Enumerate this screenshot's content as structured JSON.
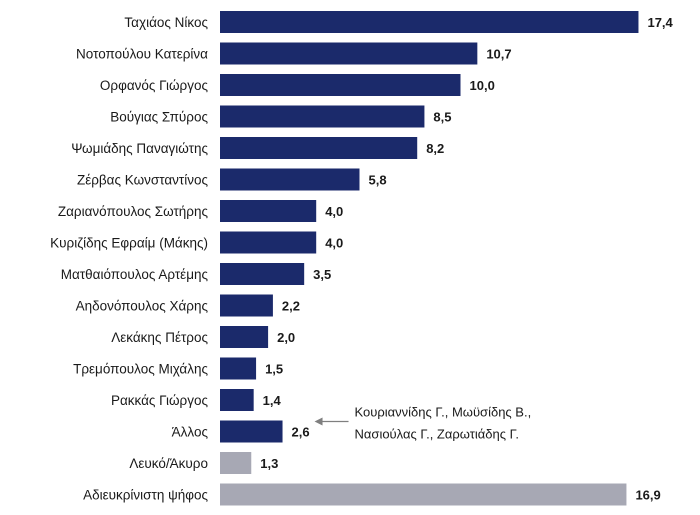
{
  "chart_data": {
    "type": "bar",
    "orientation": "horizontal",
    "categories": [
      "Ταχιάος Νίκος",
      "Νοτοπούλου Κατερίνα",
      "Ορφανός Γιώργος",
      "Βούγιας Σπύρος",
      "Ψωμιάδης Παναγιώτης",
      "Ζέρβας Κωνσταντίνος",
      "Ζαριανόπουλος Σωτήρης",
      "Κυριζίδης Εφραίμ (Μάκης)",
      "Ματθαιόπουλος Αρτέμης",
      "Αηδονόπουλος Χάρης",
      "Λεκάκης Πέτρος",
      "Τρεμόπουλος Μιχάλης",
      "Ρακκάς Γιώργος",
      "Άλλος",
      "Λευκό/Άκυρο",
      "Αδιευκρίνιστη ψήφος"
    ],
    "values": [
      17.4,
      10.7,
      10.0,
      8.5,
      8.2,
      5.8,
      4.0,
      4.0,
      3.5,
      2.2,
      2.0,
      1.5,
      1.4,
      2.6,
      1.3,
      16.9
    ],
    "value_labels": [
      "17,4",
      "10,7",
      "10,0",
      "8,5",
      "8,2",
      "5,8",
      "4,0",
      "4,0",
      "3,5",
      "2,2",
      "2,0",
      "1,5",
      "1,4",
      "2,6",
      "1,3",
      "16,9"
    ],
    "bar_colors": [
      "#1b2a6b",
      "#1b2a6b",
      "#1b2a6b",
      "#1b2a6b",
      "#1b2a6b",
      "#1b2a6b",
      "#1b2a6b",
      "#1b2a6b",
      "#1b2a6b",
      "#1b2a6b",
      "#1b2a6b",
      "#1b2a6b",
      "#1b2a6b",
      "#1b2a6b",
      "#a7a8b4",
      "#a7a8b4"
    ],
    "xlim": [
      0,
      18
    ],
    "title": "",
    "xlabel": "",
    "ylabel": "",
    "grid": false,
    "legend": "none",
    "annotation": {
      "target_category": "Άλλος",
      "lines": [
        "Κουριαννίδης Γ., Μωϋσίδης Β.,",
        "Νασιούλας Γ., Ζαρωτιάδης Γ."
      ],
      "arrow_color": "#7f7f7f"
    }
  }
}
